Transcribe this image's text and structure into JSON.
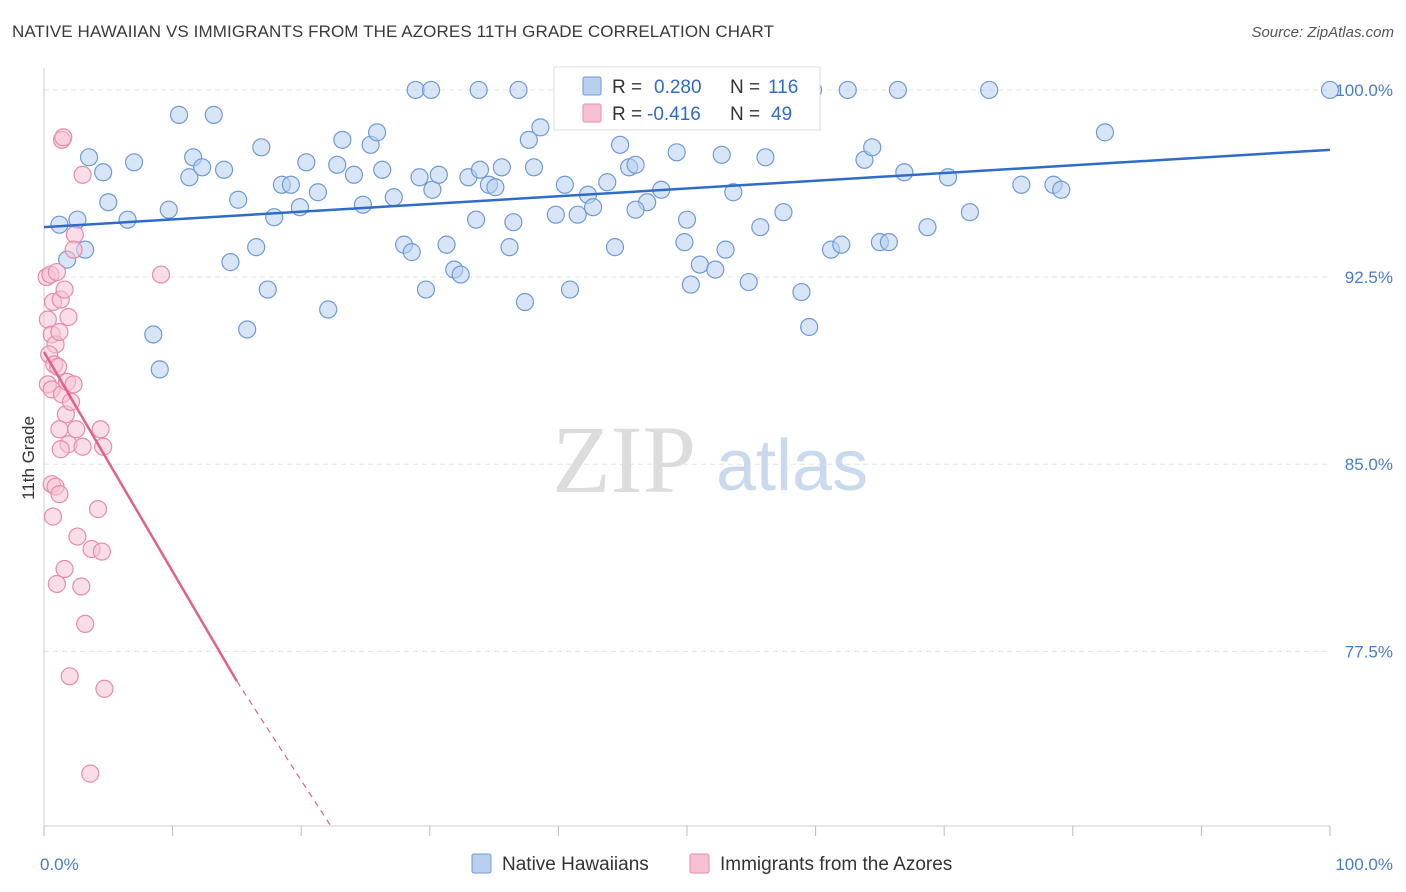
{
  "title": "NATIVE HAWAIIAN VS IMMIGRANTS FROM THE AZORES 11TH GRADE CORRELATION CHART",
  "source": "Source: ZipAtlas.com",
  "watermark": {
    "zip": "ZIP",
    "atlas": "atlas"
  },
  "colors": {
    "blue_fill": "#b8cff0",
    "blue_stroke": "#6e9ad6",
    "blue_line": "#2f6bc9",
    "pink_fill": "#f6c2d3",
    "pink_stroke": "#e88aaa",
    "pink_line": "#e0608e",
    "grid": "#e3e3e3",
    "axis_text": "#4a7cc4"
  },
  "legend": {
    "rows": [
      {
        "r_label": "R =",
        "r_value": "0.280",
        "n_label": "N =",
        "n_value": "116"
      },
      {
        "r_label": "R =",
        "r_value": "-0.416",
        "n_label": "N =",
        "n_value": "49"
      }
    ]
  },
  "bottom_legend": [
    "Native Hawaiians",
    "Immigrants from the Azores"
  ],
  "chart_data": {
    "type": "scatter",
    "title": "NATIVE HAWAIIAN VS IMMIGRANTS FROM THE AZORES 11TH GRADE CORRELATION CHART",
    "xlabel": "",
    "ylabel": "11th Grade",
    "xlim": [
      0,
      100
    ],
    "ylim": [
      70.5,
      101.2
    ],
    "x_ticks_labels": [
      "0.0%",
      "100.0%"
    ],
    "y_ticks": [
      77.5,
      85.0,
      92.5,
      100.0
    ],
    "y_ticks_labels": [
      "77.5%",
      "85.0%",
      "92.5%",
      "100.0%"
    ],
    "grid": true,
    "legend_placement": "top-center",
    "series": [
      {
        "name": "Native Hawaiians",
        "trend": {
          "x": [
            0,
            100
          ],
          "y": [
            94.5,
            97.6
          ]
        },
        "points": [
          [
            1.2,
            94.6
          ],
          [
            2.6,
            94.8
          ],
          [
            3.5,
            97.3
          ],
          [
            4.6,
            96.7
          ],
          [
            1.8,
            93.2
          ],
          [
            3.2,
            93.6
          ],
          [
            5.0,
            95.5
          ],
          [
            6.5,
            94.8
          ],
          [
            7.0,
            97.1
          ],
          [
            8.5,
            90.2
          ],
          [
            9.0,
            88.8
          ],
          [
            9.7,
            95.2
          ],
          [
            10.5,
            99.0
          ],
          [
            11.3,
            96.5
          ],
          [
            11.6,
            97.3
          ],
          [
            12.3,
            96.9
          ],
          [
            13.2,
            99.0
          ],
          [
            14.0,
            96.8
          ],
          [
            14.5,
            93.1
          ],
          [
            15.1,
            95.6
          ],
          [
            15.8,
            90.4
          ],
          [
            16.5,
            93.7
          ],
          [
            16.9,
            97.7
          ],
          [
            17.4,
            92.0
          ],
          [
            17.9,
            94.9
          ],
          [
            18.5,
            96.2
          ],
          [
            19.2,
            96.2
          ],
          [
            19.9,
            95.3
          ],
          [
            20.4,
            97.1
          ],
          [
            21.3,
            95.9
          ],
          [
            22.1,
            91.2
          ],
          [
            22.8,
            97.0
          ],
          [
            23.2,
            98.0
          ],
          [
            24.1,
            96.6
          ],
          [
            24.8,
            95.4
          ],
          [
            25.4,
            97.8
          ],
          [
            25.9,
            98.3
          ],
          [
            26.3,
            96.8
          ],
          [
            27.2,
            95.7
          ],
          [
            28.0,
            93.8
          ],
          [
            28.6,
            93.5
          ],
          [
            29.2,
            96.5
          ],
          [
            29.7,
            92.0
          ],
          [
            30.2,
            96.0
          ],
          [
            30.7,
            96.6
          ],
          [
            31.3,
            93.8
          ],
          [
            31.9,
            92.8
          ],
          [
            32.4,
            92.6
          ],
          [
            33.0,
            96.5
          ],
          [
            33.6,
            94.8
          ],
          [
            33.9,
            96.8
          ],
          [
            34.6,
            96.2
          ],
          [
            35.1,
            96.1
          ],
          [
            35.6,
            96.9
          ],
          [
            36.2,
            93.7
          ],
          [
            36.5,
            94.7
          ],
          [
            37.7,
            98.0
          ],
          [
            37.4,
            91.5
          ],
          [
            38.1,
            96.9
          ],
          [
            38.6,
            98.5
          ],
          [
            39.8,
            95.0
          ],
          [
            40.5,
            96.2
          ],
          [
            40.9,
            92.0
          ],
          [
            41.5,
            95.0
          ],
          [
            42.3,
            95.8
          ],
          [
            42.7,
            95.3
          ],
          [
            43.8,
            96.3
          ],
          [
            44.4,
            93.7
          ],
          [
            44.8,
            97.8
          ],
          [
            45.5,
            96.9
          ],
          [
            46.0,
            97.0
          ],
          [
            46.9,
            95.5
          ],
          [
            48.0,
            96.0
          ],
          [
            49.2,
            97.5
          ],
          [
            49.8,
            93.9
          ],
          [
            50.0,
            94.8
          ],
          [
            50.3,
            92.2
          ],
          [
            51.0,
            93.0
          ],
          [
            52.2,
            92.8
          ],
          [
            53.0,
            93.6
          ],
          [
            52.7,
            97.4
          ],
          [
            53.6,
            95.9
          ],
          [
            54.8,
            92.3
          ],
          [
            55.7,
            94.5
          ],
          [
            56.1,
            97.3
          ],
          [
            57.5,
            95.1
          ],
          [
            58.9,
            91.9
          ],
          [
            59.5,
            90.5
          ],
          [
            59.8,
            100.0
          ],
          [
            61.2,
            93.6
          ],
          [
            62.0,
            93.8
          ],
          [
            62.5,
            100.0
          ],
          [
            63.8,
            97.2
          ],
          [
            64.4,
            97.7
          ],
          [
            65.0,
            93.9
          ],
          [
            65.7,
            93.9
          ],
          [
            66.4,
            100.0
          ],
          [
            66.9,
            96.7
          ],
          [
            68.7,
            94.5
          ],
          [
            70.3,
            96.5
          ],
          [
            72.0,
            95.1
          ],
          [
            73.5,
            100.0
          ],
          [
            76.0,
            96.2
          ],
          [
            78.5,
            96.2
          ],
          [
            79.1,
            96.0
          ],
          [
            82.5,
            98.3
          ],
          [
            100.0,
            100.0
          ],
          [
            58.2,
            100.0
          ],
          [
            57.2,
            100.0
          ],
          [
            46.0,
            95.2
          ],
          [
            28.9,
            100.0
          ],
          [
            30.1,
            100.0
          ],
          [
            33.8,
            100.0
          ],
          [
            36.9,
            100.0
          ],
          [
            40.4,
            100.0
          ],
          [
            44.7,
            100.0
          ]
        ]
      },
      {
        "name": "Immigrants from the Azores",
        "trend": {
          "x": [
            0,
            15
          ],
          "y": [
            89.5,
            76.3
          ]
        },
        "trend_dashed": {
          "x": [
            15,
            22.3
          ],
          "y": [
            76.3,
            70.5
          ]
        },
        "points": [
          [
            0.2,
            92.5
          ],
          [
            0.5,
            92.6
          ],
          [
            0.7,
            91.5
          ],
          [
            1.0,
            92.7
          ],
          [
            1.3,
            91.6
          ],
          [
            1.6,
            92.0
          ],
          [
            1.9,
            90.9
          ],
          [
            0.3,
            90.8
          ],
          [
            0.6,
            90.2
          ],
          [
            0.9,
            89.8
          ],
          [
            1.2,
            90.3
          ],
          [
            0.4,
            89.4
          ],
          [
            0.8,
            89.0
          ],
          [
            1.1,
            88.9
          ],
          [
            0.3,
            88.2
          ],
          [
            0.6,
            88.0
          ],
          [
            1.4,
            87.8
          ],
          [
            1.8,
            88.3
          ],
          [
            2.3,
            88.2
          ],
          [
            1.7,
            87.0
          ],
          [
            2.1,
            87.5
          ],
          [
            1.2,
            86.4
          ],
          [
            2.5,
            86.4
          ],
          [
            1.9,
            85.8
          ],
          [
            3.0,
            85.7
          ],
          [
            1.3,
            85.6
          ],
          [
            0.6,
            84.2
          ],
          [
            0.9,
            84.1
          ],
          [
            1.2,
            83.8
          ],
          [
            0.7,
            82.9
          ],
          [
            2.6,
            82.1
          ],
          [
            3.7,
            81.6
          ],
          [
            1.6,
            80.8
          ],
          [
            1.0,
            80.2
          ],
          [
            2.9,
            80.1
          ],
          [
            4.2,
            83.2
          ],
          [
            4.5,
            81.5
          ],
          [
            4.4,
            86.4
          ],
          [
            4.6,
            85.7
          ],
          [
            2.0,
            76.5
          ],
          [
            4.7,
            76.0
          ],
          [
            3.2,
            78.6
          ],
          [
            3.6,
            72.6
          ],
          [
            1.4,
            98.0
          ],
          [
            1.5,
            98.1
          ],
          [
            3.0,
            96.6
          ],
          [
            2.4,
            94.2
          ],
          [
            2.3,
            93.6
          ],
          [
            9.1,
            92.6
          ]
        ]
      }
    ]
  }
}
